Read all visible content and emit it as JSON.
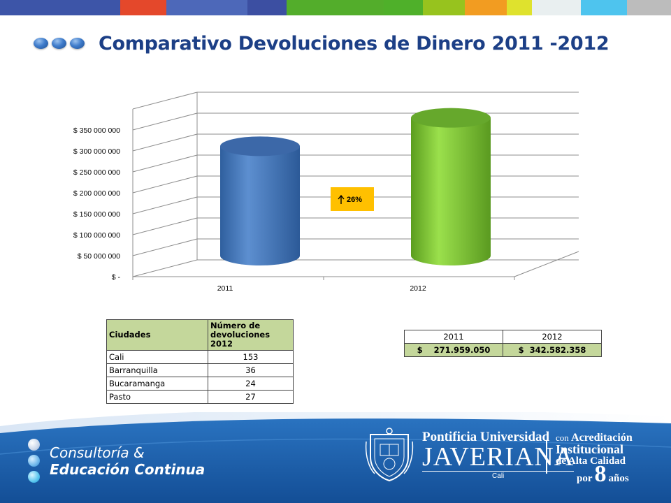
{
  "page": {
    "title": "Comparativo Devoluciones de Dinero 2011 -2012"
  },
  "colors": {
    "title": "#1c3f86",
    "bar_2011": "#4f81bd",
    "bar_2012": "#8ccd3a",
    "increase_box": "#ffc000",
    "table_header": "#c4d79b",
    "footer": "#1c5ea8",
    "top_stripe": [
      "#3d55a8",
      "#e4482b",
      "#4d68b9",
      "#3c4fa2",
      "#53ad2b",
      "#4fb02a",
      "#97c31e",
      "#f29c21",
      "#dfe22d",
      "#e9eff0",
      "#4ec4ee",
      "#bcbcbc"
    ]
  },
  "chart_data": {
    "type": "bar",
    "style": "3d-cylinder",
    "categories": [
      "2011",
      "2012"
    ],
    "values": [
      271959050,
      342582358
    ],
    "ylim": [
      0,
      350000000
    ],
    "yticks": [
      0,
      50000000,
      100000000,
      150000000,
      200000000,
      250000000,
      300000000,
      350000000
    ],
    "ytick_labels": [
      "$ -",
      "$ 50 000 000",
      "$ 100 000 000",
      "$ 150 000 000",
      "$ 200 000 000",
      "$ 250 000 000",
      "$ 300 000 000",
      "$ 350 000 000"
    ],
    "grid": true,
    "legend": "none",
    "annotation": {
      "text": "26%",
      "icon": "arrow-up-icon"
    }
  },
  "cities_table": {
    "headers": [
      "Ciudades",
      "Número de devoluciones 2012"
    ],
    "rows": [
      {
        "city": "Cali",
        "count": "153"
      },
      {
        "city": "Barranquilla",
        "count": "36"
      },
      {
        "city": "Bucaramanga",
        "count": "24"
      },
      {
        "city": "Pasto",
        "count": "27"
      }
    ]
  },
  "totals_table": {
    "years": [
      "2011",
      "2012"
    ],
    "values": [
      "$    271.959.050",
      "$  342.582.358"
    ]
  },
  "footer": {
    "brand_line1": "Consultoría &",
    "brand_line2": "Educación Continua",
    "uni_line1": "Pontificia Universidad",
    "uni_line2": "JAVERIANA",
    "uni_city": "Cali",
    "acred_pre": "con",
    "acred_word": "Acreditación",
    "acred_line2": "Institucional",
    "acred_line3": "de Alta Calidad",
    "acred_por": "por",
    "acred_num": "8",
    "acred_anos": "años"
  }
}
